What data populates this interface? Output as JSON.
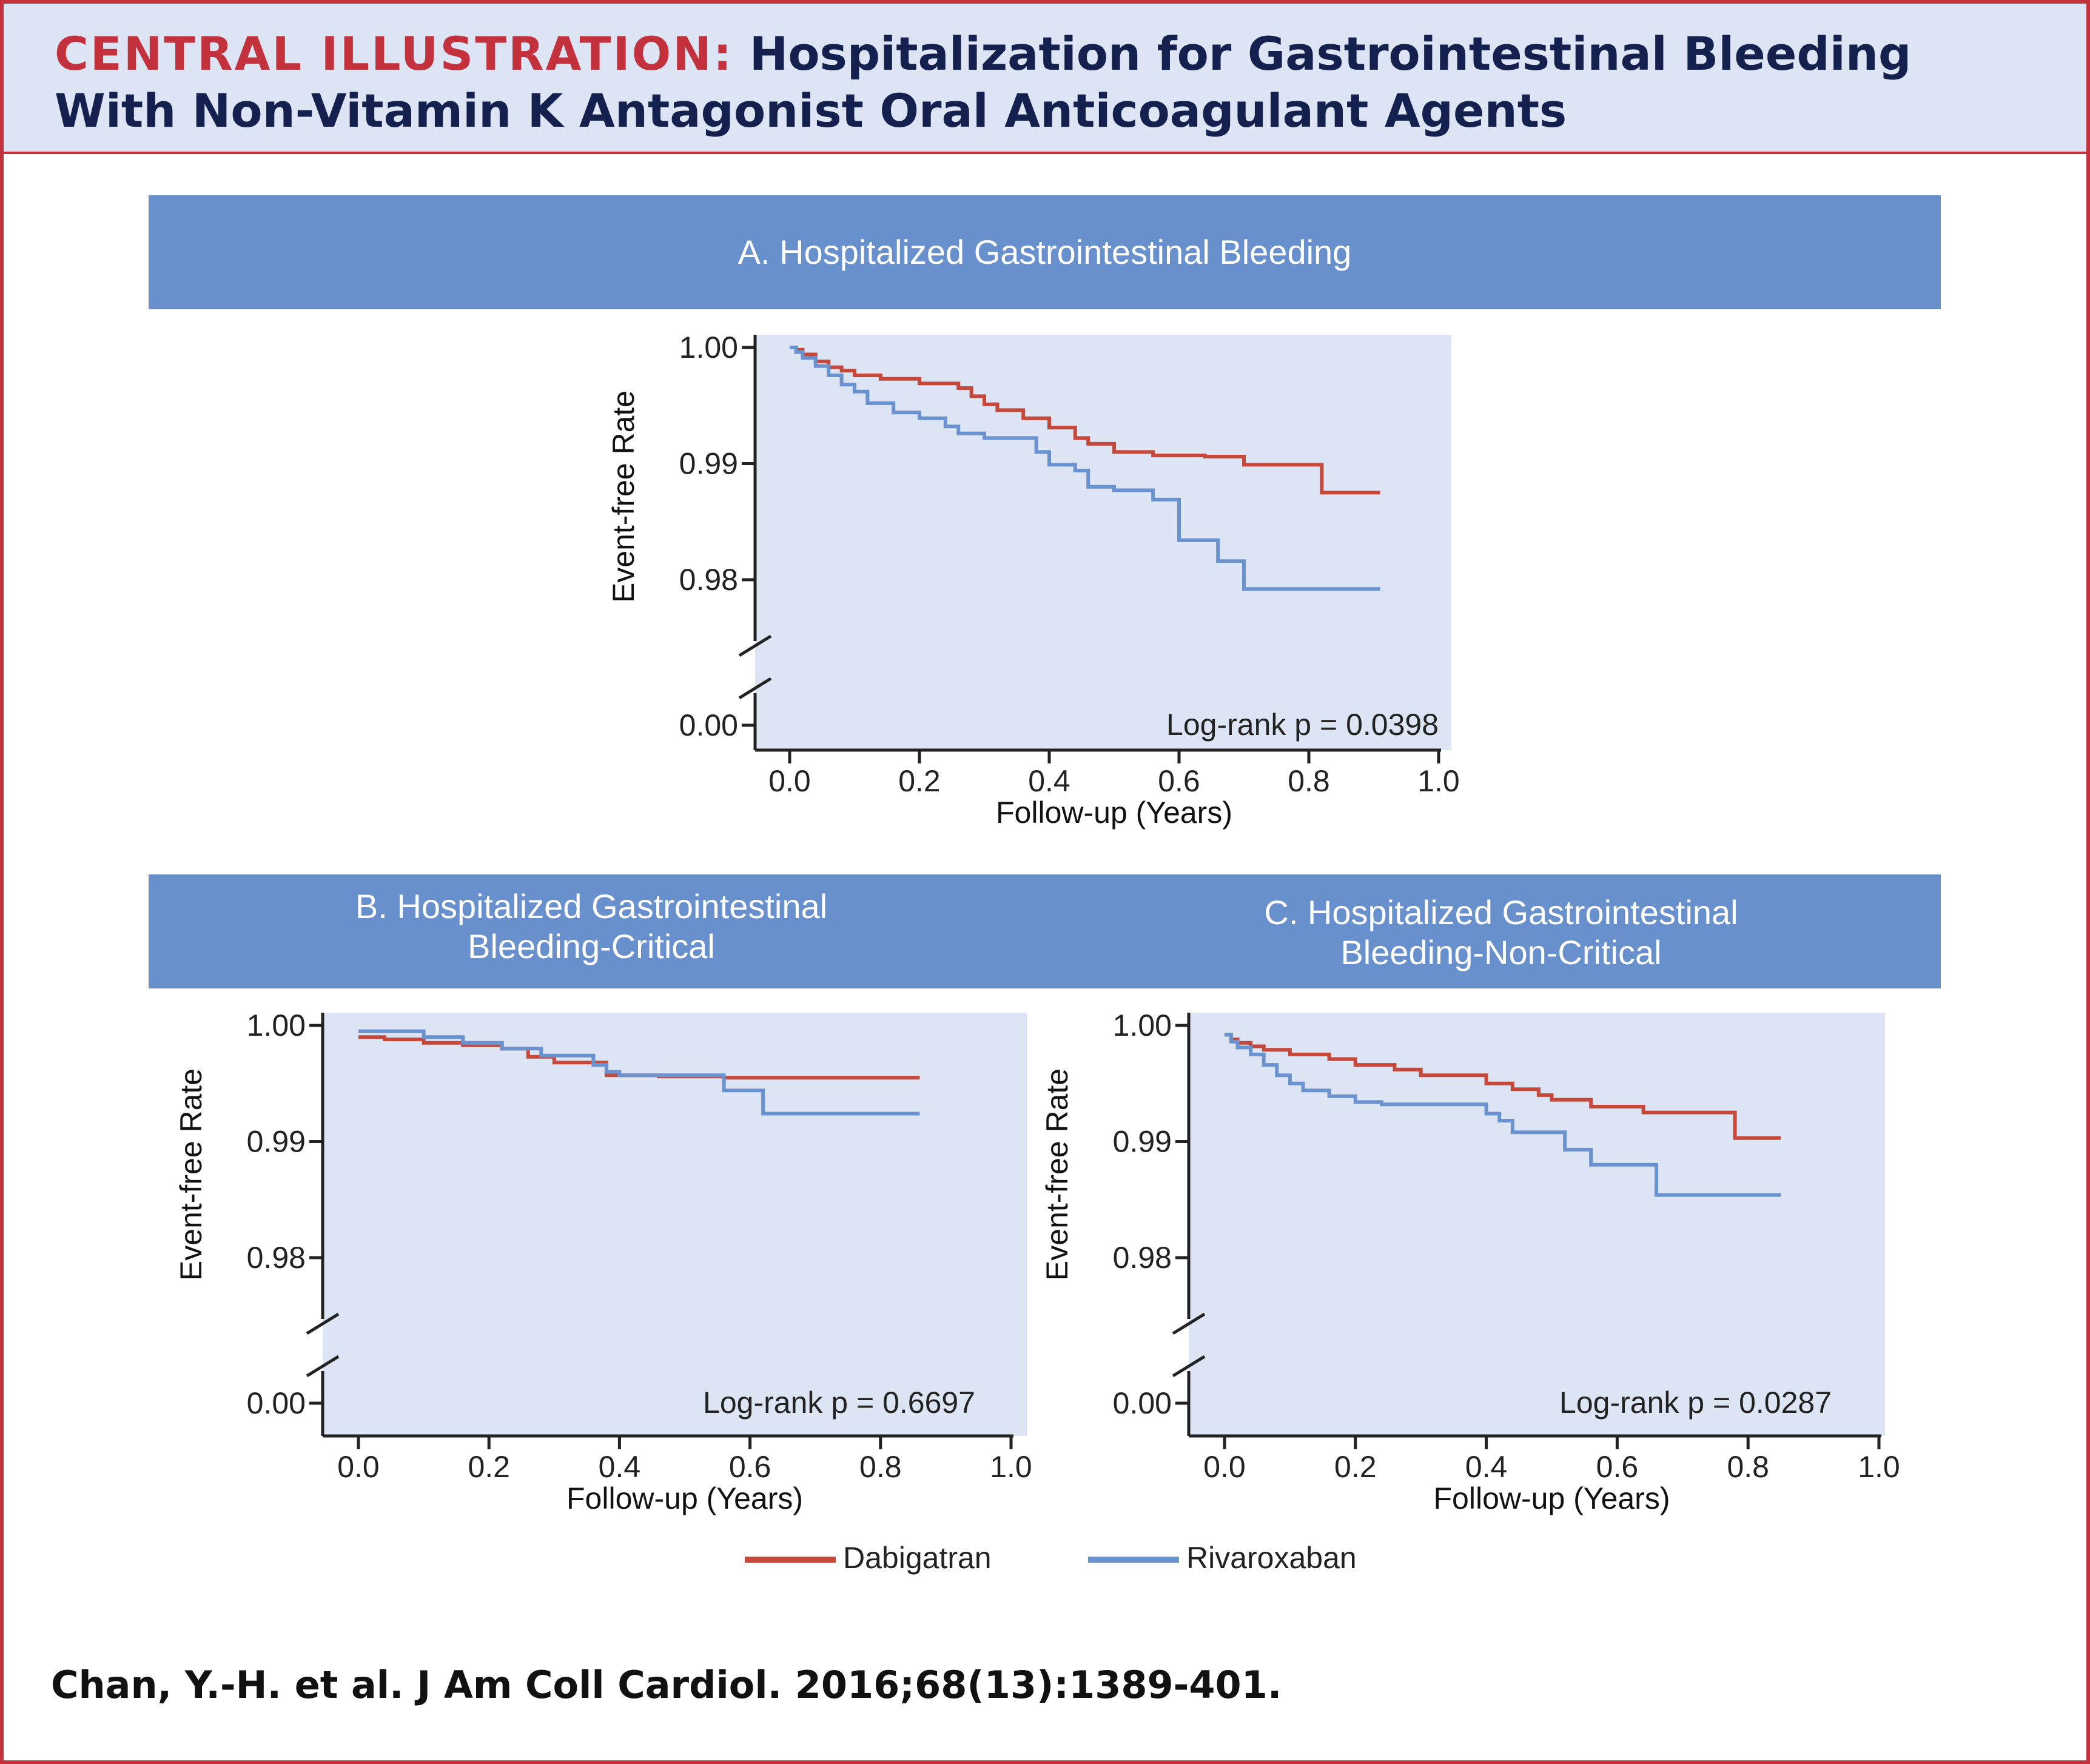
{
  "header": {
    "label": "CENTRAL ILLUSTRATION:",
    "title_line1": "Hospitalization for Gastrointestinal Bleeding",
    "title_line2": "With Non-Vitamin K Antagonist Oral Anticoagulant Agents"
  },
  "colors": {
    "dabigatran": "#c5483a",
    "rivaroxaban": "#6a92cf",
    "plot_bg": "#dde4f3",
    "banner": "#6890cd",
    "accent": "#c3323c"
  },
  "legend": [
    {
      "name": "Dabigatran",
      "color": "#c5483a"
    },
    {
      "name": "Rivaroxaban",
      "color": "#6a92cf"
    }
  ],
  "citation": "Chan, Y.-H. et al. J Am Coll Cardiol. 2016;68(13):1389-401.",
  "chart_data": [
    {
      "type": "line",
      "step": true,
      "title": "A. Hospitalized Gastrointestinal Bleeding",
      "xlabel": "Follow-up (Years)",
      "ylabel": "Event-free Rate",
      "xlim": [
        0,
        1.0
      ],
      "xticks": [
        "0.0",
        "0.2",
        "0.4",
        "0.6",
        "0.8",
        "1.0"
      ],
      "ylim": [
        0.976,
        1.0
      ],
      "y_axis_break": true,
      "yticks": [
        "1.00",
        "0.99",
        "0.98",
        "0.00"
      ],
      "annotation": "Log-rank p = 0.0398",
      "series": [
        {
          "name": "Dabigatran",
          "x": [
            0,
            0.01,
            0.02,
            0.04,
            0.06,
            0.08,
            0.1,
            0.14,
            0.2,
            0.26,
            0.28,
            0.3,
            0.32,
            0.36,
            0.4,
            0.44,
            0.46,
            0.5,
            0.56,
            0.64,
            0.7,
            0.76,
            0.82,
            0.91
          ],
          "y": [
            1.0,
            0.9998,
            0.9994,
            0.9988,
            0.9983,
            0.998,
            0.9976,
            0.9973,
            0.9969,
            0.9965,
            0.9958,
            0.9951,
            0.9946,
            0.9939,
            0.9931,
            0.9922,
            0.9917,
            0.991,
            0.9907,
            0.9906,
            0.9899,
            0.9899,
            0.9875,
            0.9875
          ]
        },
        {
          "name": "Rivaroxaban",
          "x": [
            0,
            0.01,
            0.02,
            0.04,
            0.06,
            0.08,
            0.1,
            0.12,
            0.16,
            0.2,
            0.24,
            0.26,
            0.3,
            0.36,
            0.38,
            0.4,
            0.44,
            0.46,
            0.5,
            0.54,
            0.56,
            0.6,
            0.64,
            0.66,
            0.7,
            0.74,
            0.91
          ],
          "y": [
            1.0,
            0.9996,
            0.9991,
            0.9984,
            0.9976,
            0.9968,
            0.9962,
            0.9952,
            0.9944,
            0.9939,
            0.9932,
            0.9926,
            0.9922,
            0.9922,
            0.991,
            0.9899,
            0.9894,
            0.988,
            0.9877,
            0.9877,
            0.9869,
            0.9834,
            0.9834,
            0.9816,
            0.9792,
            0.9792,
            0.9792
          ]
        }
      ]
    },
    {
      "type": "line",
      "step": true,
      "title": "B. Hospitalized Gastrointestinal Bleeding-Critical",
      "xlabel": "Follow-up (Years)",
      "ylabel": "Event-free Rate",
      "xlim": [
        0,
        1.0
      ],
      "xticks": [
        "0.0",
        "0.2",
        "0.4",
        "0.6",
        "0.8",
        "1.0"
      ],
      "ylim": [
        0.976,
        1.0
      ],
      "y_axis_break": true,
      "yticks": [
        "1.00",
        "0.99",
        "0.98",
        "0.00"
      ],
      "annotation": "Log-rank p = 0.6697",
      "series": [
        {
          "name": "Dabigatran",
          "x": [
            0,
            0.04,
            0.1,
            0.16,
            0.22,
            0.26,
            0.3,
            0.38,
            0.46,
            0.56,
            0.86
          ],
          "y": [
            0.999,
            0.9988,
            0.9985,
            0.9983,
            0.998,
            0.9973,
            0.9968,
            0.9957,
            0.9956,
            0.9955,
            0.9955
          ]
        },
        {
          "name": "Rivaroxaban",
          "x": [
            0,
            0.1,
            0.16,
            0.22,
            0.28,
            0.36,
            0.38,
            0.4,
            0.56,
            0.56,
            0.62,
            0.86
          ],
          "y": [
            0.9995,
            0.999,
            0.9985,
            0.998,
            0.9974,
            0.9966,
            0.996,
            0.9957,
            0.9957,
            0.9944,
            0.9924,
            0.9924
          ]
        }
      ]
    },
    {
      "type": "line",
      "step": true,
      "title": "C. Hospitalized Gastrointestinal Bleeding-Non-Critical",
      "xlabel": "Follow-up (Years)",
      "ylabel": "Event-free Rate",
      "xlim": [
        0,
        1.0
      ],
      "xticks": [
        "0.0",
        "0.2",
        "0.4",
        "0.6",
        "0.8",
        "1.0"
      ],
      "ylim": [
        0.976,
        1.0
      ],
      "y_axis_break": true,
      "yticks": [
        "1.00",
        "0.99",
        "0.98",
        "0.00"
      ],
      "annotation": "Log-rank p = 0.0287",
      "series": [
        {
          "name": "Dabigatran",
          "x": [
            0,
            0.01,
            0.02,
            0.04,
            0.06,
            0.1,
            0.16,
            0.2,
            0.26,
            0.3,
            0.4,
            0.44,
            0.48,
            0.5,
            0.56,
            0.64,
            0.76,
            0.78,
            0.85
          ],
          "y": [
            0.9992,
            0.9988,
            0.9985,
            0.9982,
            0.9979,
            0.9975,
            0.9971,
            0.9966,
            0.9962,
            0.9957,
            0.995,
            0.9945,
            0.994,
            0.9936,
            0.993,
            0.9925,
            0.9925,
            0.9903,
            0.9903
          ]
        },
        {
          "name": "Rivaroxaban",
          "x": [
            0,
            0.01,
            0.02,
            0.04,
            0.06,
            0.08,
            0.1,
            0.12,
            0.16,
            0.2,
            0.24,
            0.3,
            0.4,
            0.42,
            0.44,
            0.52,
            0.56,
            0.64,
            0.66,
            0.85
          ],
          "y": [
            0.9992,
            0.9986,
            0.9981,
            0.9975,
            0.9966,
            0.9957,
            0.995,
            0.9944,
            0.9939,
            0.9934,
            0.9932,
            0.9932,
            0.9924,
            0.9918,
            0.9908,
            0.9893,
            0.988,
            0.988,
            0.9854,
            0.9854
          ]
        }
      ]
    }
  ]
}
